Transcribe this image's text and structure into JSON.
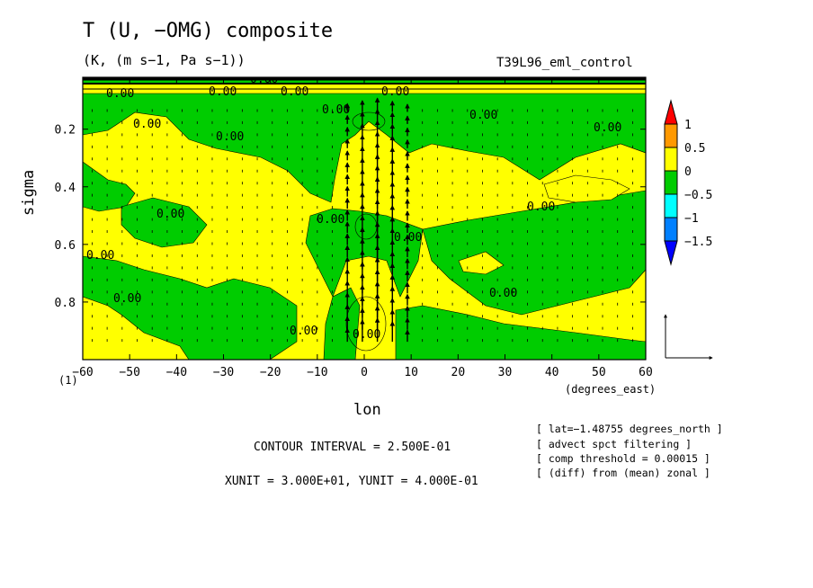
{
  "chart_data": {
    "type": "heatmap",
    "title": "T (U, −OMG) composite",
    "units_label": "(K, (m s−1, Pa s−1))",
    "run_name": "T39L96_eml_control",
    "xlabel": "lon",
    "xlabel_units": "(degrees_east)",
    "ylabel": "sigma",
    "x_marker": "(1)",
    "xlim": [
      -60,
      60
    ],
    "ylim": [
      1.0,
      0.02
    ],
    "x_ticks": [
      "−60",
      "−50",
      "−40",
      "−30",
      "−20",
      "−10",
      "0",
      "10",
      "20",
      "30",
      "40",
      "50",
      "60"
    ],
    "y_ticks": [
      "0.2",
      "0.4",
      "0.6",
      "0.8"
    ],
    "colorbar": {
      "labels": [
        "1",
        "0.5",
        "0",
        "−0.5",
        "−1",
        "−1.5"
      ],
      "colors": [
        "#ff0000",
        "#ff9900",
        "#ffff00",
        "#00cc00",
        "#00ffff",
        "#0080ff",
        "#0000ff"
      ]
    },
    "contour_label": "0.00",
    "contour_interval": "CONTOUR INTERVAL = 2.500E-01",
    "vector_units": "XUNIT = 3.000E+01, YUNIT = 4.000E-01",
    "notes": [
      "[ lat=−1.48755 degrees_north ]",
      "[ advect spct filtering ]",
      "[ comp threshold = 0.00015 ]",
      "[ (diff) from (mean) zonal ]"
    ],
    "vectors_description": "strong upward arrows near lon 0 (from −5 to 12), weak arrows elsewhere"
  }
}
